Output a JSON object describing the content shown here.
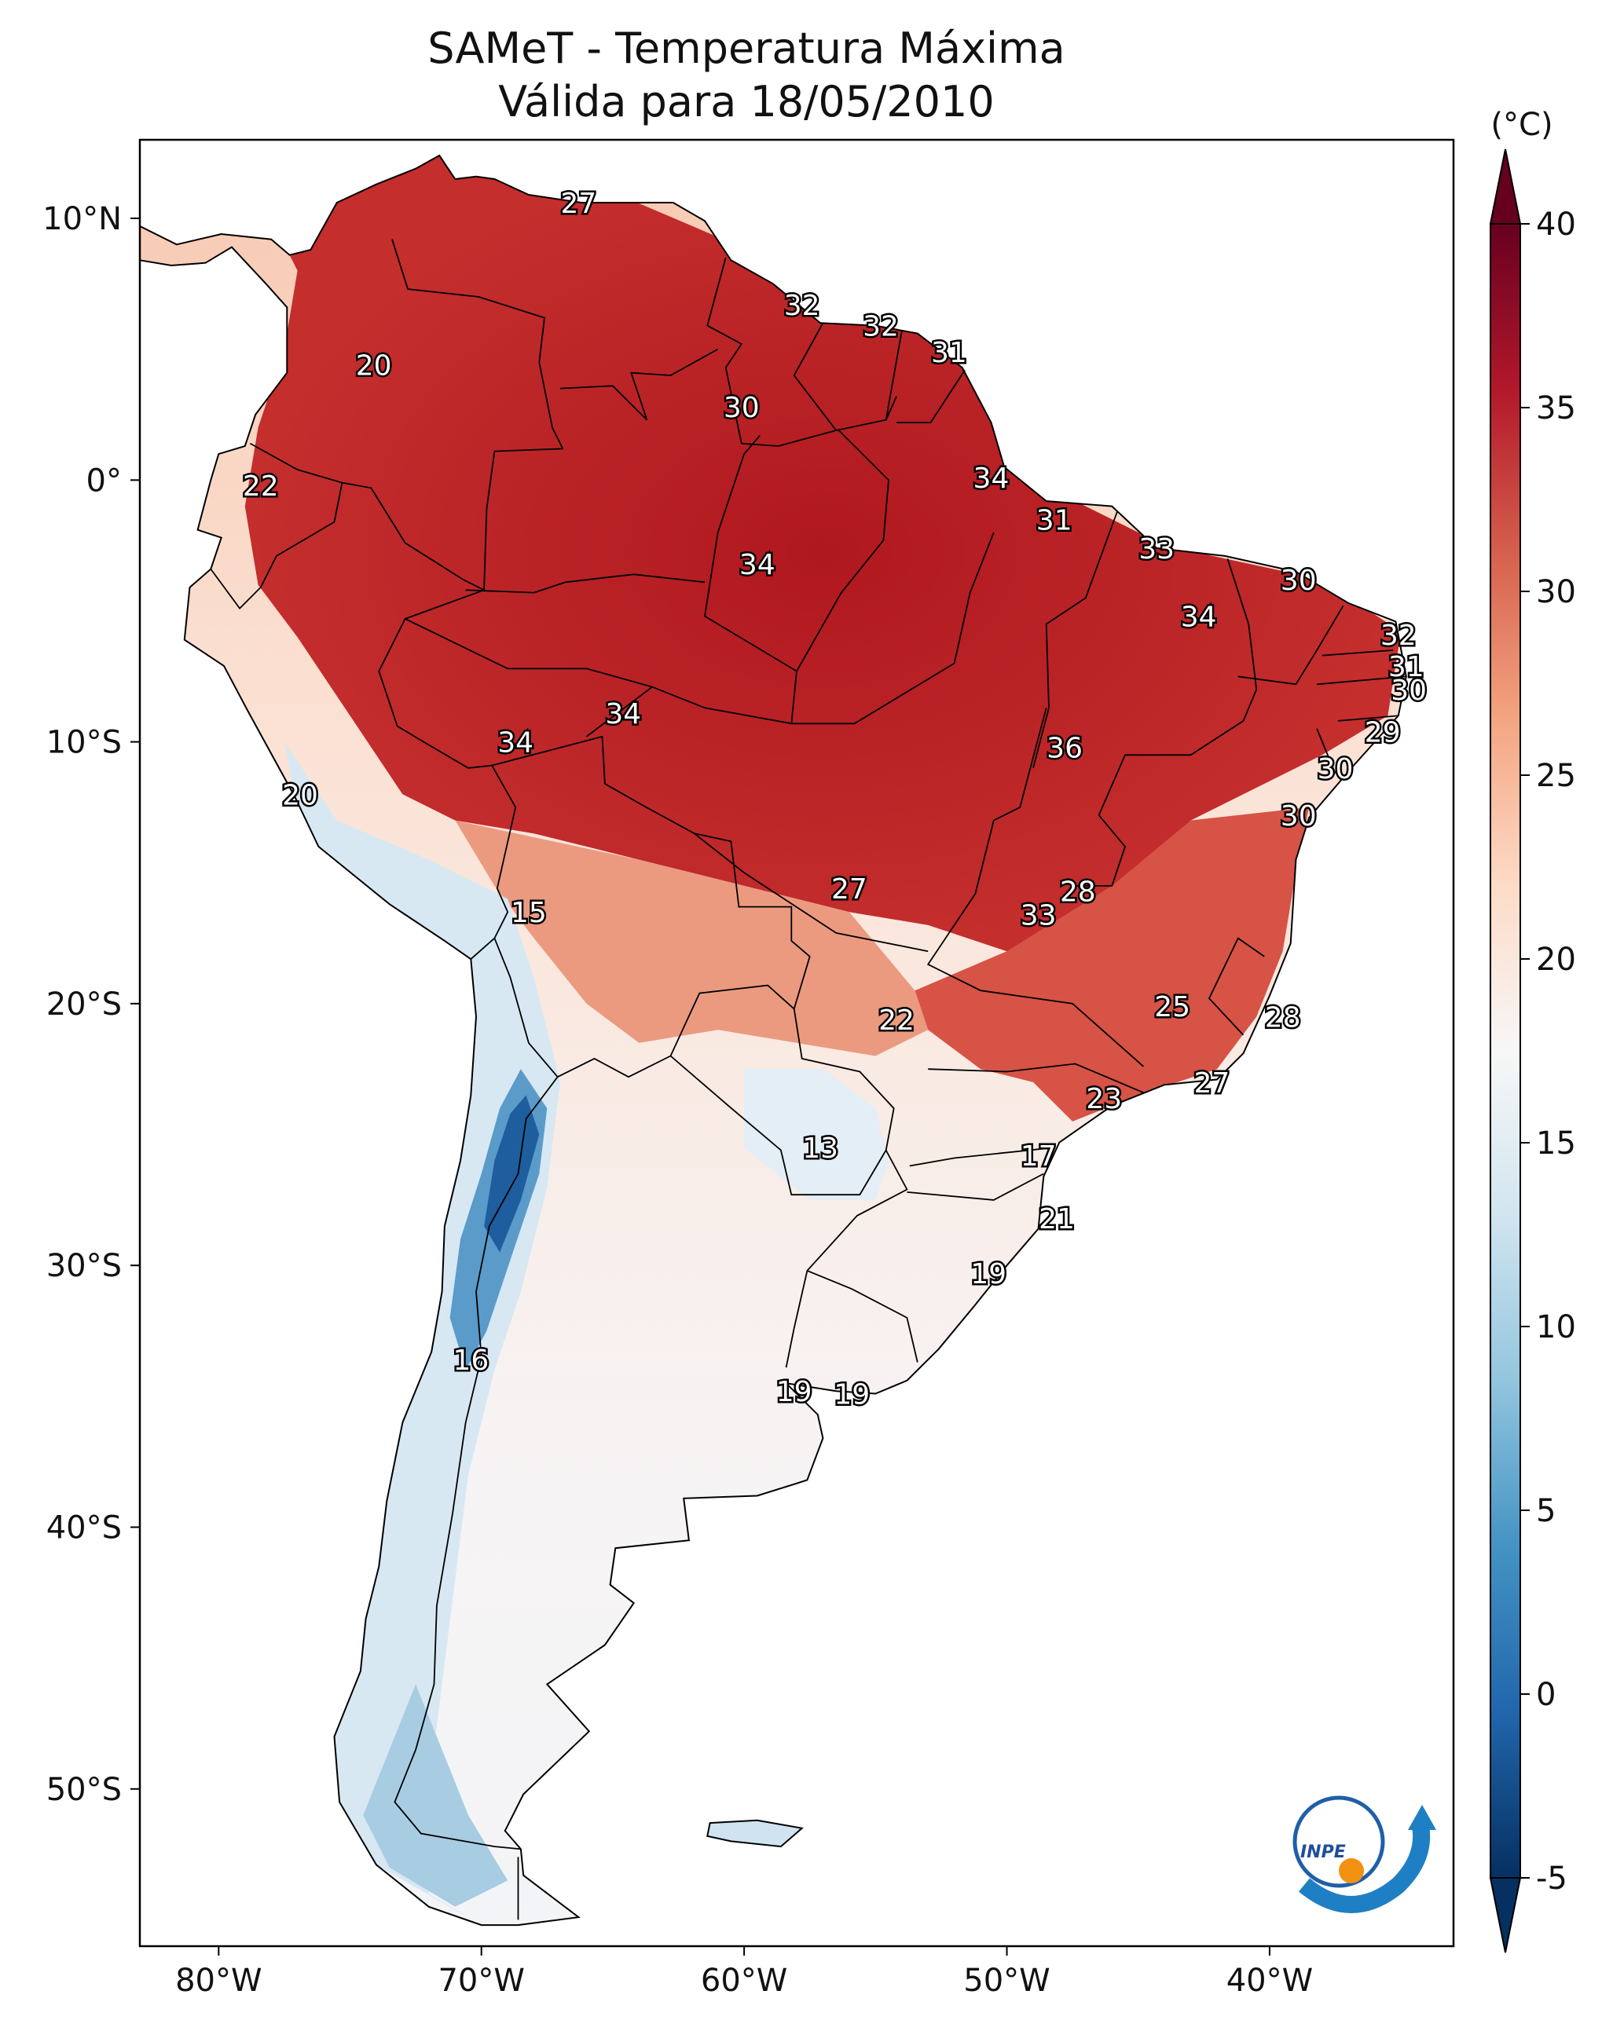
{
  "title": {
    "line1": "SAMeT - Temperatura Máxima",
    "line2": "Válida para 18/05/2010"
  },
  "colorbar": {
    "unit": "(°C)",
    "ticks": [
      40,
      35,
      30,
      25,
      20,
      15,
      10,
      5,
      0,
      -5
    ],
    "colors": [
      "#67001f",
      "#b2182b",
      "#d6604d",
      "#f4a582",
      "#fddbc7",
      "#f7f7f7",
      "#d1e5f0",
      "#92c5de",
      "#4393c3",
      "#2166ac",
      "#053061"
    ]
  },
  "axes": {
    "lon_ticks": [
      "80°W",
      "70°W",
      "60°W",
      "50°W",
      "40°W"
    ],
    "lat_ticks": [
      "10°N",
      "0°",
      "10°S",
      "20°S",
      "30°S",
      "40°S",
      "50°S"
    ]
  },
  "logo": {
    "text": "INPE",
    "icon": "inpe-logo-icon"
  },
  "temperature_labels": [
    {
      "v": "27",
      "lon": -66.3,
      "lat": 10.6
    },
    {
      "v": "32",
      "lon": -57.8,
      "lat": 6.7
    },
    {
      "v": "32",
      "lon": -54.8,
      "lat": 5.9
    },
    {
      "v": "31",
      "lon": -52.2,
      "lat": 4.9
    },
    {
      "v": "20",
      "lon": -74.1,
      "lat": 4.4
    },
    {
      "v": "30",
      "lon": -60.1,
      "lat": 2.8
    },
    {
      "v": "22",
      "lon": -78.4,
      "lat": -0.2
    },
    {
      "v": "34",
      "lon": -50.6,
      "lat": 0.1
    },
    {
      "v": "31",
      "lon": -48.2,
      "lat": -1.5
    },
    {
      "v": "33",
      "lon": -44.3,
      "lat": -2.6
    },
    {
      "v": "34",
      "lon": -59.5,
      "lat": -3.2
    },
    {
      "v": "30",
      "lon": -38.9,
      "lat": -3.8
    },
    {
      "v": "34",
      "lon": -42.7,
      "lat": -5.2
    },
    {
      "v": "32",
      "lon": -35.1,
      "lat": -5.9
    },
    {
      "v": "31",
      "lon": -34.8,
      "lat": -7.1
    },
    {
      "v": "30",
      "lon": -34.7,
      "lat": -8.0
    },
    {
      "v": "34",
      "lon": -64.6,
      "lat": -8.9
    },
    {
      "v": "29",
      "lon": -35.7,
      "lat": -9.6
    },
    {
      "v": "34",
      "lon": -68.7,
      "lat": -10.0
    },
    {
      "v": "36",
      "lon": -47.8,
      "lat": -10.2
    },
    {
      "v": "30",
      "lon": -37.5,
      "lat": -11.0
    },
    {
      "v": "20",
      "lon": -76.9,
      "lat": -12.0
    },
    {
      "v": "30",
      "lon": -38.9,
      "lat": -12.8
    },
    {
      "v": "28",
      "lon": -47.3,
      "lat": -15.7
    },
    {
      "v": "27",
      "lon": -56.0,
      "lat": -15.6
    },
    {
      "v": "15",
      "lon": -68.2,
      "lat": -16.5
    },
    {
      "v": "33",
      "lon": -48.8,
      "lat": -16.6
    },
    {
      "v": "25",
      "lon": -43.7,
      "lat": -20.1
    },
    {
      "v": "22",
      "lon": -54.2,
      "lat": -20.6
    },
    {
      "v": "28",
      "lon": -39.5,
      "lat": -20.5
    },
    {
      "v": "27",
      "lon": -42.2,
      "lat": -23.0
    },
    {
      "v": "23",
      "lon": -46.3,
      "lat": -23.6
    },
    {
      "v": "13",
      "lon": -57.1,
      "lat": -25.5
    },
    {
      "v": "17",
      "lon": -48.8,
      "lat": -25.8
    },
    {
      "v": "21",
      "lon": -48.1,
      "lat": -28.2
    },
    {
      "v": "19",
      "lon": -50.7,
      "lat": -30.3
    },
    {
      "v": "16",
      "lon": -70.4,
      "lat": -33.6
    },
    {
      "v": "19",
      "lon": -58.1,
      "lat": -34.8
    },
    {
      "v": "19",
      "lon": -55.9,
      "lat": -34.9
    }
  ]
}
